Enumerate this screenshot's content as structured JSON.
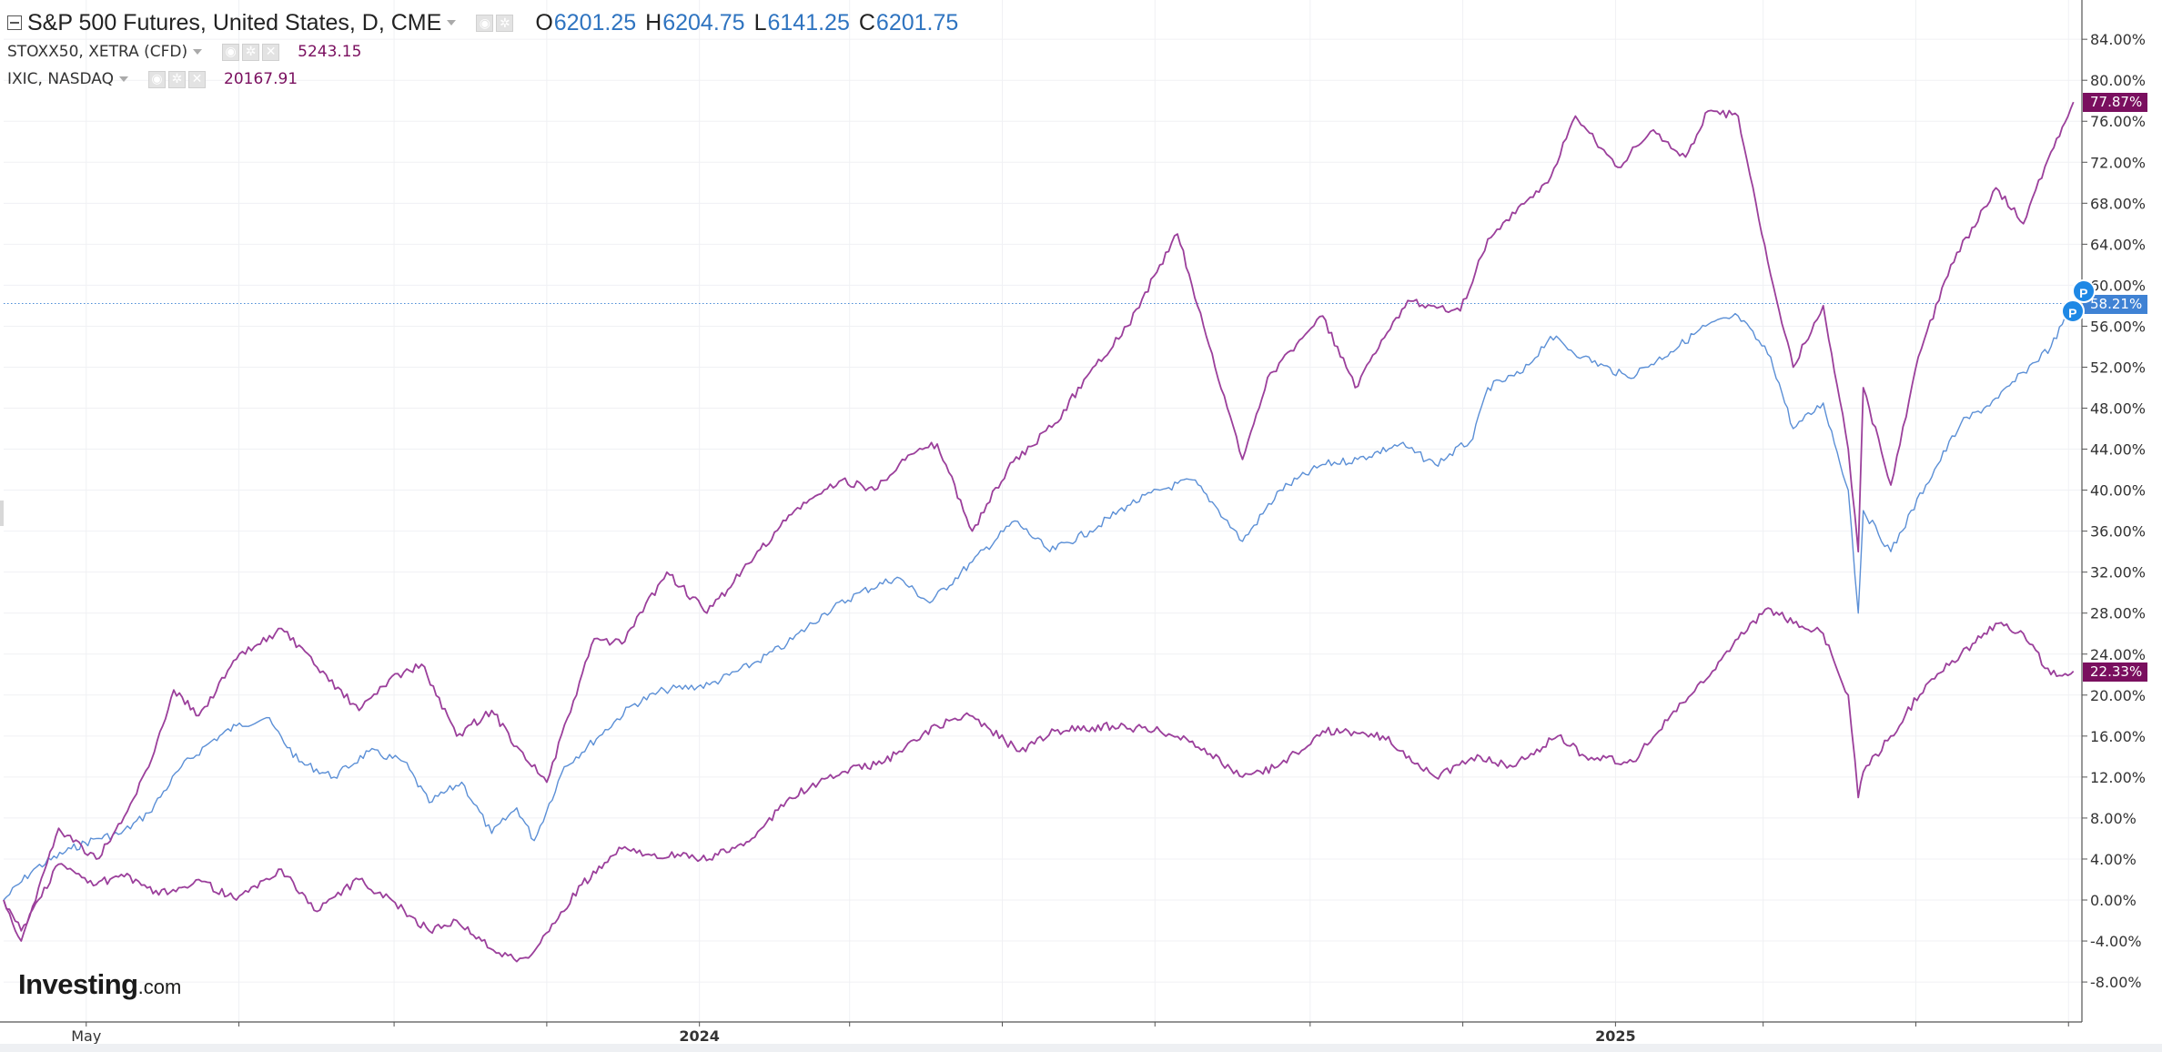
{
  "legend": {
    "main_title": "S&P 500 Futures, United States, D, CME",
    "open_label": "O",
    "open_value": "6201.25",
    "high_label": "H",
    "high_value": "6204.75",
    "low_label": "L",
    "low_value": "6141.25",
    "close_label": "C",
    "close_value": "6201.75",
    "sub1_title": "STOXX50, XETRA (CFD)",
    "sub1_value": "5243.15",
    "sub2_title": "IXIC, NASDAQ",
    "sub2_value": "20167.91"
  },
  "brand": {
    "main": "Investing",
    "suffix": ".com"
  },
  "markers": {
    "p_label": "P"
  },
  "colors": {
    "sp500": "#5b8fd6",
    "ixic": "#9b3f9b",
    "stoxx": "#9b3f9b",
    "tag_blue": "#3f82d4",
    "tag_purple": "#7a0f5f",
    "marker_blue": "#1e88e5"
  },
  "chart_data": {
    "type": "line",
    "title": "S&P 500 Futures, United States, D, CME",
    "xlabel": "",
    "ylabel": "",
    "x_range": [
      "2023-03-29",
      "2025-07-06"
    ],
    "x_ticks": [
      {
        "label": "May",
        "date": "2023-05-01",
        "bold": false
      },
      {
        "label": "",
        "date": "2023-07-01",
        "bold": false
      },
      {
        "label": "",
        "date": "2023-09-01",
        "bold": false
      },
      {
        "label": "",
        "date": "2023-11-01",
        "bold": false
      },
      {
        "label": "2024",
        "date": "2024-01-01",
        "bold": true
      },
      {
        "label": "",
        "date": "2024-03-01",
        "bold": false
      },
      {
        "label": "",
        "date": "2024-05-01",
        "bold": false
      },
      {
        "label": "",
        "date": "2024-07-01",
        "bold": false
      },
      {
        "label": "",
        "date": "2024-09-01",
        "bold": false
      },
      {
        "label": "",
        "date": "2024-11-01",
        "bold": false
      },
      {
        "label": "2025",
        "date": "2025-01-01",
        "bold": true
      },
      {
        "label": "",
        "date": "2025-03-01",
        "bold": false
      },
      {
        "label": "",
        "date": "2025-05-01",
        "bold": false
      },
      {
        "label": "",
        "date": "2025-07-01",
        "bold": false
      }
    ],
    "y_unit": "%",
    "ylim": [
      -10,
      88
    ],
    "y_ticks": [
      "84.00%",
      "80.00%",
      "76.00%",
      "72.00%",
      "68.00%",
      "64.00%",
      "60.00%",
      "56.00%",
      "52.00%",
      "48.00%",
      "44.00%",
      "40.00%",
      "36.00%",
      "32.00%",
      "28.00%",
      "24.00%",
      "20.00%",
      "16.00%",
      "12.00%",
      "8.00%",
      "4.00%",
      "0.00%",
      "-4.00%",
      "-8.00%"
    ],
    "y_tick_values": [
      84,
      80,
      76,
      72,
      68,
      64,
      60,
      56,
      52,
      48,
      44,
      40,
      36,
      32,
      28,
      24,
      20,
      16,
      12,
      8,
      4,
      0,
      -4,
      -8
    ],
    "grid": true,
    "current_price_line": 58.21,
    "series": [
      {
        "name": "S&P 500 Futures",
        "last_label": "58.21%",
        "x": [
          "2023-03-29",
          "2023-04-10",
          "2023-04-25",
          "2023-05-05",
          "2023-05-15",
          "2023-05-26",
          "2023-06-08",
          "2023-06-20",
          "2023-06-30",
          "2023-07-12",
          "2023-07-25",
          "2023-08-08",
          "2023-08-22",
          "2023-09-05",
          "2023-09-15",
          "2023-09-28",
          "2023-10-10",
          "2023-10-20",
          "2023-10-27",
          "2023-11-08",
          "2023-11-22",
          "2023-12-05",
          "2023-12-18",
          "2024-01-05",
          "2024-01-22",
          "2024-02-05",
          "2024-02-20",
          "2024-03-05",
          "2024-03-20",
          "2024-04-02",
          "2024-04-19",
          "2024-05-06",
          "2024-05-20",
          "2024-06-05",
          "2024-06-20",
          "2024-07-03",
          "2024-07-16",
          "2024-07-25",
          "2024-08-05",
          "2024-08-20",
          "2024-09-06",
          "2024-09-20",
          "2024-10-07",
          "2024-10-21",
          "2024-11-05",
          "2024-11-11",
          "2024-11-25",
          "2024-12-06",
          "2024-12-19",
          "2025-01-06",
          "2025-01-13",
          "2025-01-23",
          "2025-02-06",
          "2025-02-19",
          "2025-03-04",
          "2025-03-13",
          "2025-03-25",
          "2025-04-04",
          "2025-04-08",
          "2025-04-10",
          "2025-04-21",
          "2025-05-05",
          "2025-05-19",
          "2025-06-03",
          "2025-06-13",
          "2025-06-24",
          "2025-07-03"
        ],
        "values": [
          0.0,
          3.0,
          5.0,
          6.0,
          6.5,
          8.5,
          13.0,
          15.5,
          17.0,
          17.8,
          13.5,
          12.0,
          14.5,
          13.5,
          9.5,
          11.5,
          6.5,
          9.0,
          5.8,
          13.0,
          16.0,
          19.0,
          20.5,
          21.0,
          23.0,
          25.0,
          28.0,
          30.0,
          31.5,
          29.0,
          33.0,
          37.0,
          34.0,
          36.0,
          38.5,
          40.0,
          41.0,
          38.5,
          35.0,
          40.0,
          42.5,
          43.0,
          44.5,
          42.5,
          45.0,
          50.0,
          51.5,
          55.0,
          53.0,
          51.0,
          52.0,
          53.5,
          56.0,
          57.0,
          53.0,
          46.0,
          48.5,
          40.0,
          28.0,
          38.0,
          34.0,
          40.5,
          46.5,
          49.0,
          51.5,
          54.0,
          58.21
        ]
      },
      {
        "name": "IXIC",
        "last_label": "77.87%",
        "x": [
          "2023-03-29",
          "2023-04-05",
          "2023-04-20",
          "2023-05-05",
          "2023-05-15",
          "2023-05-26",
          "2023-06-05",
          "2023-06-15",
          "2023-06-30",
          "2023-07-18",
          "2023-07-31",
          "2023-08-18",
          "2023-08-30",
          "2023-09-12",
          "2023-09-26",
          "2023-10-10",
          "2023-10-20",
          "2023-11-01",
          "2023-11-20",
          "2023-12-01",
          "2023-12-19",
          "2024-01-04",
          "2024-01-23",
          "2024-02-08",
          "2024-02-27",
          "2024-03-11",
          "2024-03-22",
          "2024-04-05",
          "2024-04-19",
          "2024-05-03",
          "2024-05-22",
          "2024-06-05",
          "2024-06-20",
          "2024-07-10",
          "2024-07-25",
          "2024-08-05",
          "2024-08-15",
          "2024-09-06",
          "2024-09-19",
          "2024-10-10",
          "2024-10-31",
          "2024-11-11",
          "2024-11-22",
          "2024-12-05",
          "2024-12-16",
          "2025-01-02",
          "2025-01-15",
          "2025-01-29",
          "2025-02-07",
          "2025-02-19",
          "2025-03-04",
          "2025-03-13",
          "2025-03-25",
          "2025-04-04",
          "2025-04-08",
          "2025-04-10",
          "2025-04-21",
          "2025-05-02",
          "2025-05-15",
          "2025-06-02",
          "2025-06-13",
          "2025-06-24",
          "2025-07-03"
        ],
        "values": [
          0.0,
          -4.0,
          7.0,
          4.0,
          7.5,
          13.0,
          20.5,
          18.0,
          23.5,
          26.5,
          23.0,
          18.5,
          21.5,
          23.0,
          16.0,
          18.5,
          15.0,
          11.5,
          25.5,
          25.0,
          32.0,
          28.0,
          33.5,
          38.0,
          41.0,
          40.0,
          43.0,
          44.5,
          36.0,
          42.0,
          46.5,
          51.5,
          56.0,
          65.0,
          52.0,
          43.0,
          51.0,
          57.0,
          50.0,
          58.5,
          57.5,
          64.5,
          67.0,
          70.0,
          76.5,
          71.5,
          75.0,
          72.5,
          77.0,
          76.5,
          61.0,
          52.0,
          58.0,
          44.0,
          34.0,
          50.0,
          40.5,
          53.0,
          62.0,
          69.5,
          66.0,
          73.0,
          77.87
        ]
      },
      {
        "name": "STOXX50",
        "last_label": "22.33%",
        "x": [
          "2023-03-29",
          "2023-04-05",
          "2023-04-20",
          "2023-05-05",
          "2023-05-15",
          "2023-05-30",
          "2023-06-15",
          "2023-06-30",
          "2023-07-18",
          "2023-07-31",
          "2023-08-18",
          "2023-09-05",
          "2023-09-15",
          "2023-09-26",
          "2023-10-06",
          "2023-10-20",
          "2023-10-27",
          "2023-11-15",
          "2023-12-01",
          "2023-12-14",
          "2024-01-05",
          "2024-01-22",
          "2024-02-06",
          "2024-02-27",
          "2024-03-15",
          "2024-04-05",
          "2024-04-18",
          "2024-05-08",
          "2024-05-22",
          "2024-06-14",
          "2024-07-03",
          "2024-07-16",
          "2024-08-05",
          "2024-08-19",
          "2024-09-06",
          "2024-09-30",
          "2024-10-21",
          "2024-11-08",
          "2024-11-21",
          "2024-12-09",
          "2024-12-20",
          "2025-01-08",
          "2025-01-23",
          "2025-02-10",
          "2025-02-19",
          "2025-03-03",
          "2025-03-13",
          "2025-03-25",
          "2025-04-04",
          "2025-04-08",
          "2025-04-10",
          "2025-04-21",
          "2025-05-05",
          "2025-05-19",
          "2025-06-03",
          "2025-06-13",
          "2025-06-24",
          "2025-07-03"
        ],
        "values": [
          0.0,
          -3.0,
          3.5,
          1.5,
          2.5,
          0.5,
          2.0,
          0.0,
          3.0,
          -1.0,
          2.0,
          -1.0,
          -3.0,
          -2.0,
          -4.0,
          -6.0,
          -5.0,
          1.5,
          5.0,
          4.5,
          4.0,
          6.0,
          10.0,
          12.5,
          13.5,
          17.0,
          18.0,
          14.5,
          16.5,
          17.0,
          16.5,
          15.5,
          12.0,
          13.0,
          16.5,
          16.0,
          12.0,
          14.0,
          13.0,
          16.0,
          14.0,
          13.5,
          18.0,
          22.5,
          25.5,
          28.5,
          27.0,
          26.0,
          20.0,
          10.0,
          12.5,
          16.0,
          21.0,
          24.0,
          27.0,
          26.0,
          22.0,
          22.33
        ]
      }
    ]
  }
}
